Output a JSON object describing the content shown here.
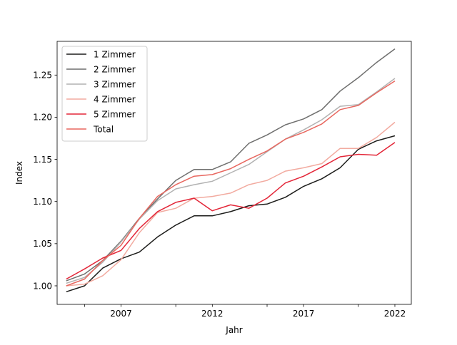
{
  "chart_data": {
    "type": "line",
    "xlabel": "Jahr",
    "ylabel": "Index",
    "xlim": [
      2003.5,
      2022.9
    ],
    "ylim": [
      0.978,
      1.29
    ],
    "x_ticks": [
      2007,
      2012,
      2017,
      2022
    ],
    "x_minor_ticks": [
      2005,
      2010,
      2015,
      2020
    ],
    "y_ticks": [
      1.0,
      1.05,
      1.1,
      1.15,
      1.2,
      1.25
    ],
    "y_tick_labels": [
      "1.00",
      "1.05",
      "1.10",
      "1.15",
      "1.20",
      "1.25"
    ],
    "x": [
      2004,
      2005,
      2006,
      2007,
      2008,
      2009,
      2010,
      2011,
      2012,
      2013,
      2014,
      2015,
      2016,
      2017,
      2018,
      2019,
      2020,
      2021,
      2022
    ],
    "legend_position": "top-left",
    "grid": false,
    "series": [
      {
        "name": "1 Zimmer",
        "color": "#1d1d1b",
        "values": [
          0.993,
          1.0,
          1.021,
          1.032,
          1.04,
          1.058,
          1.072,
          1.083,
          1.083,
          1.088,
          1.095,
          1.097,
          1.105,
          1.118,
          1.127,
          1.14,
          1.162,
          1.172,
          1.178
        ]
      },
      {
        "name": "2 Zimmer",
        "color": "#6f6f6e",
        "values": [
          1.006,
          1.014,
          1.03,
          1.053,
          1.08,
          1.103,
          1.125,
          1.138,
          1.138,
          1.147,
          1.169,
          1.179,
          1.191,
          1.198,
          1.209,
          1.231,
          1.247,
          1.265,
          1.281
        ]
      },
      {
        "name": "3 Zimmer",
        "color": "#b2b2b2",
        "values": [
          1.003,
          1.01,
          1.028,
          1.052,
          1.079,
          1.101,
          1.115,
          1.12,
          1.124,
          1.134,
          1.144,
          1.159,
          1.174,
          1.185,
          1.197,
          1.213,
          1.215,
          1.23,
          1.246
        ]
      },
      {
        "name": "4 Zimmer",
        "color": "#f2aba0",
        "values": [
          1.0,
          1.002,
          1.012,
          1.031,
          1.063,
          1.087,
          1.092,
          1.104,
          1.106,
          1.11,
          1.12,
          1.125,
          1.136,
          1.14,
          1.145,
          1.163,
          1.163,
          1.176,
          1.194
        ]
      },
      {
        "name": "5 Zimmer",
        "color": "#e32638",
        "values": [
          1.008,
          1.02,
          1.033,
          1.042,
          1.068,
          1.088,
          1.099,
          1.104,
          1.089,
          1.096,
          1.092,
          1.104,
          1.122,
          1.13,
          1.141,
          1.153,
          1.156,
          1.155,
          1.17
        ]
      },
      {
        "name": "Total",
        "color": "#e8675f",
        "values": [
          1.0,
          1.008,
          1.03,
          1.048,
          1.08,
          1.106,
          1.12,
          1.13,
          1.132,
          1.139,
          1.15,
          1.16,
          1.174,
          1.182,
          1.192,
          1.209,
          1.214,
          1.229,
          1.243
        ]
      }
    ]
  }
}
